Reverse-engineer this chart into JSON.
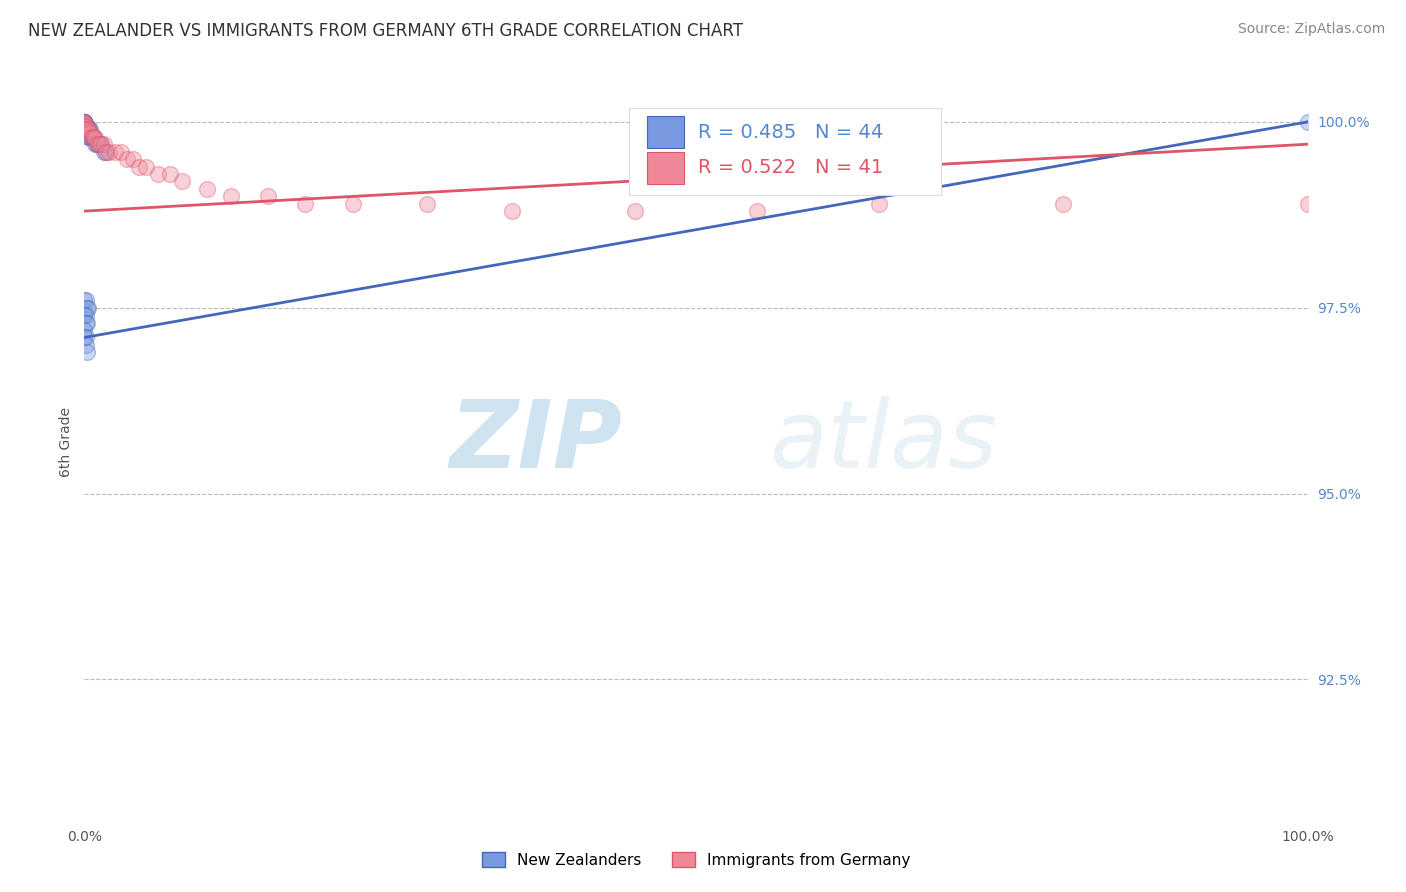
{
  "title": "NEW ZEALANDER VS IMMIGRANTS FROM GERMANY 6TH GRADE CORRELATION CHART",
  "source": "Source: ZipAtlas.com",
  "ylabel": "6th Grade",
  "xmin": 0.0,
  "xmax": 1.0,
  "ymin": 0.906,
  "ymax": 1.008,
  "yticks": [
    0.925,
    0.95,
    0.975,
    1.0
  ],
  "ytick_labels": [
    "92.5%",
    "95.0%",
    "97.5%",
    "100.0%"
  ],
  "xticks": [
    0.0,
    0.1,
    0.2,
    0.3,
    0.4,
    0.5,
    0.6,
    0.7,
    0.8,
    0.9,
    1.0
  ],
  "xtick_labels": [
    "0.0%",
    "",
    "",
    "",
    "",
    "",
    "",
    "",
    "",
    "",
    "100.0%"
  ],
  "blue_color": "#7799DD",
  "pink_color": "#EE8899",
  "blue_edge": "#4466BB",
  "pink_edge": "#DD5566",
  "watermark_zip": "ZIP",
  "watermark_atlas": "atlas",
  "legend_R_blue": "R = 0.485",
  "legend_N_blue": "N = 44",
  "legend_R_pink": "R = 0.522",
  "legend_N_pink": "N = 41",
  "blue_x": [
    0.0,
    0.0,
    0.0,
    0.0,
    0.0,
    0.0,
    0.0,
    0.0,
    0.0,
    0.0,
    0.001,
    0.001,
    0.002,
    0.002,
    0.003,
    0.003,
    0.004,
    0.004,
    0.005,
    0.005,
    0.006,
    0.007,
    0.008,
    0.009,
    0.01,
    0.011,
    0.012,
    0.014,
    0.016,
    0.018,
    0.0,
    0.001,
    0.002,
    0.003,
    0.0,
    0.001,
    0.001,
    0.002,
    0.0,
    0.0,
    0.001,
    0.001,
    0.002,
    1.0
  ],
  "blue_y": [
    1.0,
    1.0,
    1.0,
    1.0,
    1.0,
    1.0,
    1.0,
    1.0,
    0.9995,
    0.999,
    0.9995,
    0.999,
    0.9995,
    0.999,
    0.999,
    0.998,
    0.999,
    0.998,
    0.999,
    0.998,
    0.998,
    0.998,
    0.998,
    0.997,
    0.997,
    0.997,
    0.997,
    0.997,
    0.996,
    0.996,
    0.976,
    0.976,
    0.975,
    0.975,
    0.974,
    0.974,
    0.973,
    0.973,
    0.972,
    0.971,
    0.971,
    0.97,
    0.969,
    1.0
  ],
  "pink_x": [
    0.0,
    0.0,
    0.0,
    0.0,
    0.0,
    0.0,
    0.002,
    0.003,
    0.004,
    0.005,
    0.006,
    0.007,
    0.008,
    0.009,
    0.01,
    0.012,
    0.014,
    0.016,
    0.018,
    0.02,
    0.025,
    0.03,
    0.035,
    0.04,
    0.045,
    0.05,
    0.06,
    0.07,
    0.08,
    0.1,
    0.12,
    0.15,
    0.18,
    0.22,
    0.28,
    0.35,
    0.45,
    0.55,
    0.65,
    0.8,
    1.0
  ],
  "pink_y": [
    1.0,
    1.0,
    0.9997,
    0.9995,
    0.999,
    0.999,
    0.999,
    0.999,
    0.9988,
    0.9985,
    0.998,
    0.998,
    0.998,
    0.9978,
    0.997,
    0.997,
    0.997,
    0.997,
    0.996,
    0.996,
    0.996,
    0.996,
    0.995,
    0.995,
    0.994,
    0.994,
    0.993,
    0.993,
    0.992,
    0.991,
    0.99,
    0.99,
    0.989,
    0.989,
    0.989,
    0.988,
    0.988,
    0.988,
    0.989,
    0.989,
    0.989
  ],
  "blue_trend_x": [
    0.0,
    1.0
  ],
  "blue_trend_y": [
    0.971,
    1.0
  ],
  "pink_trend_x": [
    0.0,
    1.0
  ],
  "pink_trend_y": [
    0.988,
    0.997
  ],
  "title_fontsize": 12,
  "axis_label_fontsize": 10,
  "tick_fontsize": 10,
  "legend_fontsize": 14,
  "source_fontsize": 10,
  "marker_size": 130,
  "marker_alpha": 0.38,
  "marker_lw": 1.0,
  "background_color": "#ffffff",
  "grid_color": "#bbbbbb",
  "legend_box_color": "#ffffff",
  "legend_box_edge": "#dddddd",
  "ytick_color": "#5588CC",
  "watermark_color": "#C5D8EE",
  "watermark_alpha": 0.5
}
